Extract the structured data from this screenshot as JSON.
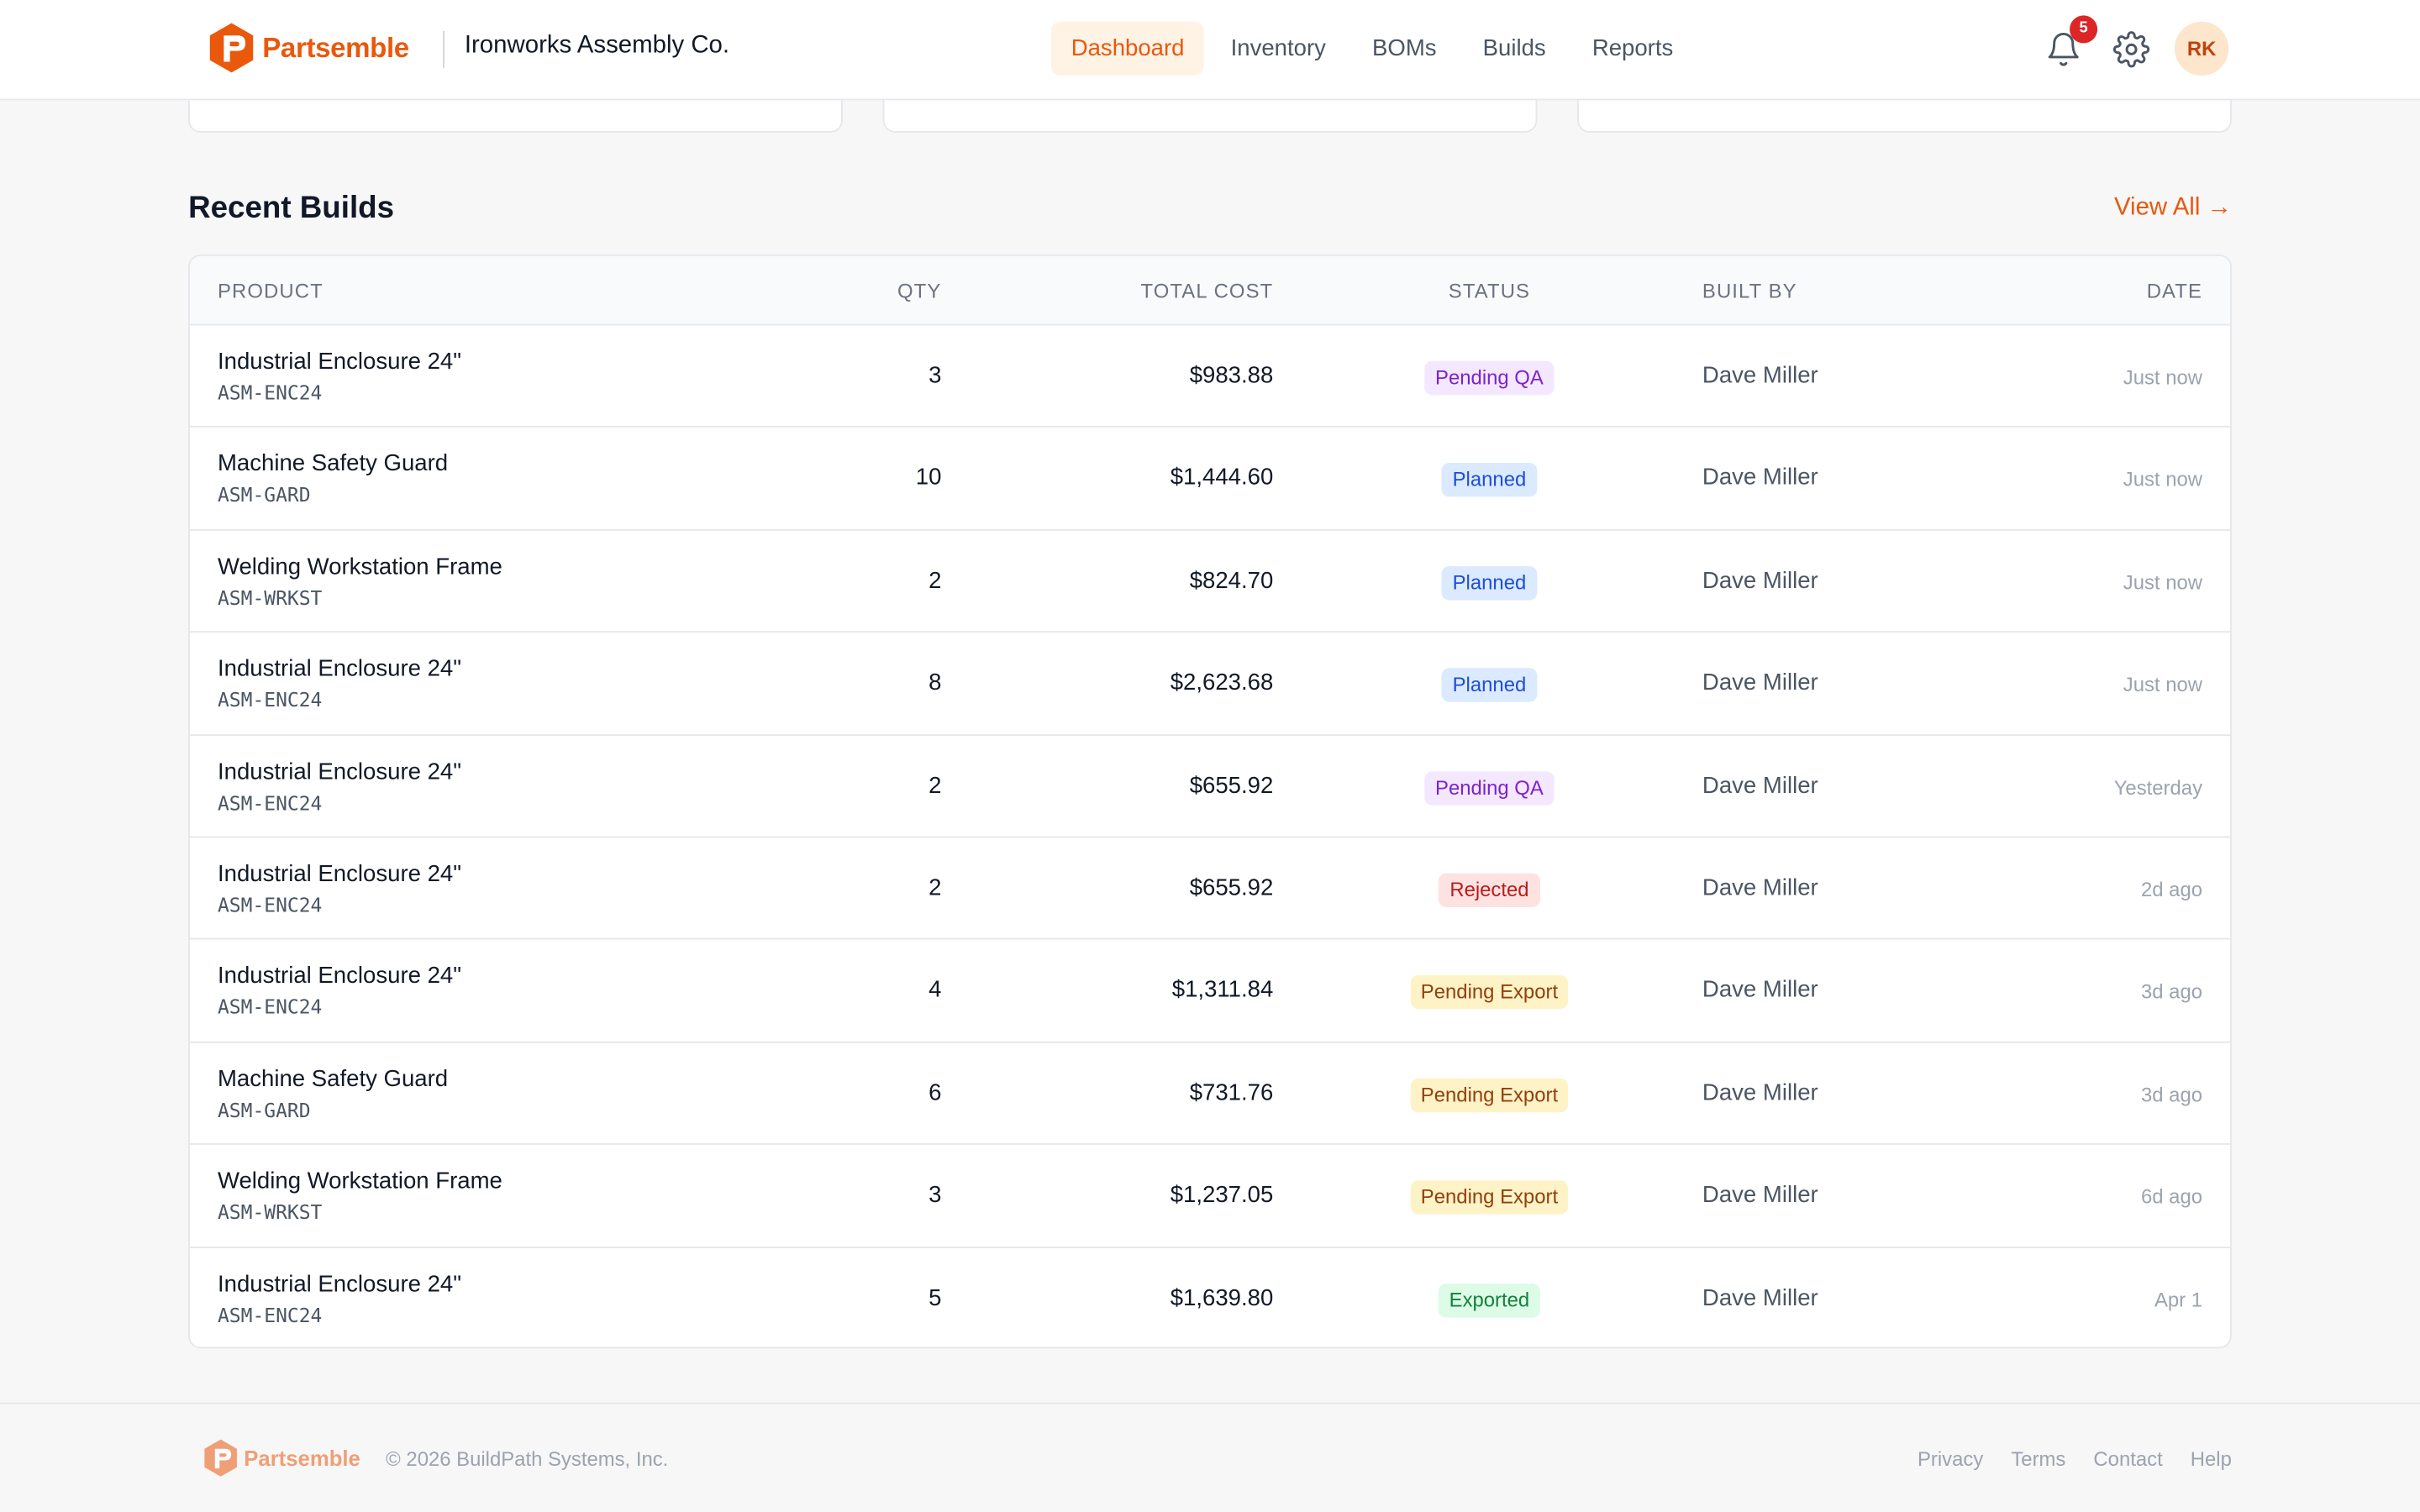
{
  "header": {
    "brand": "Partsemble",
    "company": "Ironworks Assembly Co.",
    "nav": [
      {
        "label": "Dashboard",
        "active": true
      },
      {
        "label": "Inventory",
        "active": false
      },
      {
        "label": "BOMs",
        "active": false
      },
      {
        "label": "Builds",
        "active": false
      },
      {
        "label": "Reports",
        "active": false
      }
    ],
    "notification_count": "5",
    "user_initials": "RK",
    "accent_color": "#ea580c"
  },
  "recent_builds": {
    "title": "Recent Builds",
    "view_all": "View All →",
    "columns": {
      "product": "PRODUCT",
      "qty": "QTY",
      "total_cost": "TOTAL COST",
      "status": "STATUS",
      "built_by": "BUILT BY",
      "date": "DATE"
    },
    "rows": [
      {
        "product": "Industrial Enclosure 24\"",
        "sku": "ASM-ENC24",
        "qty": "3",
        "cost": "$983.88",
        "status": "Pending QA",
        "built_by": "Dave Miller",
        "date": "Just now"
      },
      {
        "product": "Machine Safety Guard",
        "sku": "ASM-GARD",
        "qty": "10",
        "cost": "$1,444.60",
        "status": "Planned",
        "built_by": "Dave Miller",
        "date": "Just now"
      },
      {
        "product": "Welding Workstation Frame",
        "sku": "ASM-WRKST",
        "qty": "2",
        "cost": "$824.70",
        "status": "Planned",
        "built_by": "Dave Miller",
        "date": "Just now"
      },
      {
        "product": "Industrial Enclosure 24\"",
        "sku": "ASM-ENC24",
        "qty": "8",
        "cost": "$2,623.68",
        "status": "Planned",
        "built_by": "Dave Miller",
        "date": "Just now"
      },
      {
        "product": "Industrial Enclosure 24\"",
        "sku": "ASM-ENC24",
        "qty": "2",
        "cost": "$655.92",
        "status": "Pending QA",
        "built_by": "Dave Miller",
        "date": "Yesterday"
      },
      {
        "product": "Industrial Enclosure 24\"",
        "sku": "ASM-ENC24",
        "qty": "2",
        "cost": "$655.92",
        "status": "Rejected",
        "built_by": "Dave Miller",
        "date": "2d ago"
      },
      {
        "product": "Industrial Enclosure 24\"",
        "sku": "ASM-ENC24",
        "qty": "4",
        "cost": "$1,311.84",
        "status": "Pending Export",
        "built_by": "Dave Miller",
        "date": "3d ago"
      },
      {
        "product": "Machine Safety Guard",
        "sku": "ASM-GARD",
        "qty": "6",
        "cost": "$731.76",
        "status": "Pending Export",
        "built_by": "Dave Miller",
        "date": "3d ago"
      },
      {
        "product": "Welding Workstation Frame",
        "sku": "ASM-WRKST",
        "qty": "3",
        "cost": "$1,237.05",
        "status": "Pending Export",
        "built_by": "Dave Miller",
        "date": "6d ago"
      },
      {
        "product": "Industrial Enclosure 24\"",
        "sku": "ASM-ENC24",
        "qty": "5",
        "cost": "$1,639.80",
        "status": "Exported",
        "built_by": "Dave Miller",
        "date": "Apr 1"
      }
    ],
    "status_colors": {
      "Pending QA": {
        "bg": "#f3e8ff",
        "fg": "#7e22ce"
      },
      "Planned": {
        "bg": "#dbeafe",
        "fg": "#1d4ed8"
      },
      "Rejected": {
        "bg": "#fee2e2",
        "fg": "#b91c1c"
      },
      "Pending Export": {
        "bg": "#fef3c7",
        "fg": "#92400e"
      },
      "Exported": {
        "bg": "#dcfce7",
        "fg": "#15803d"
      }
    }
  },
  "footer": {
    "brand": "Partsemble",
    "copyright": "© 2026 BuildPath Systems, Inc.",
    "links": [
      "Privacy",
      "Terms",
      "Contact",
      "Help"
    ]
  }
}
